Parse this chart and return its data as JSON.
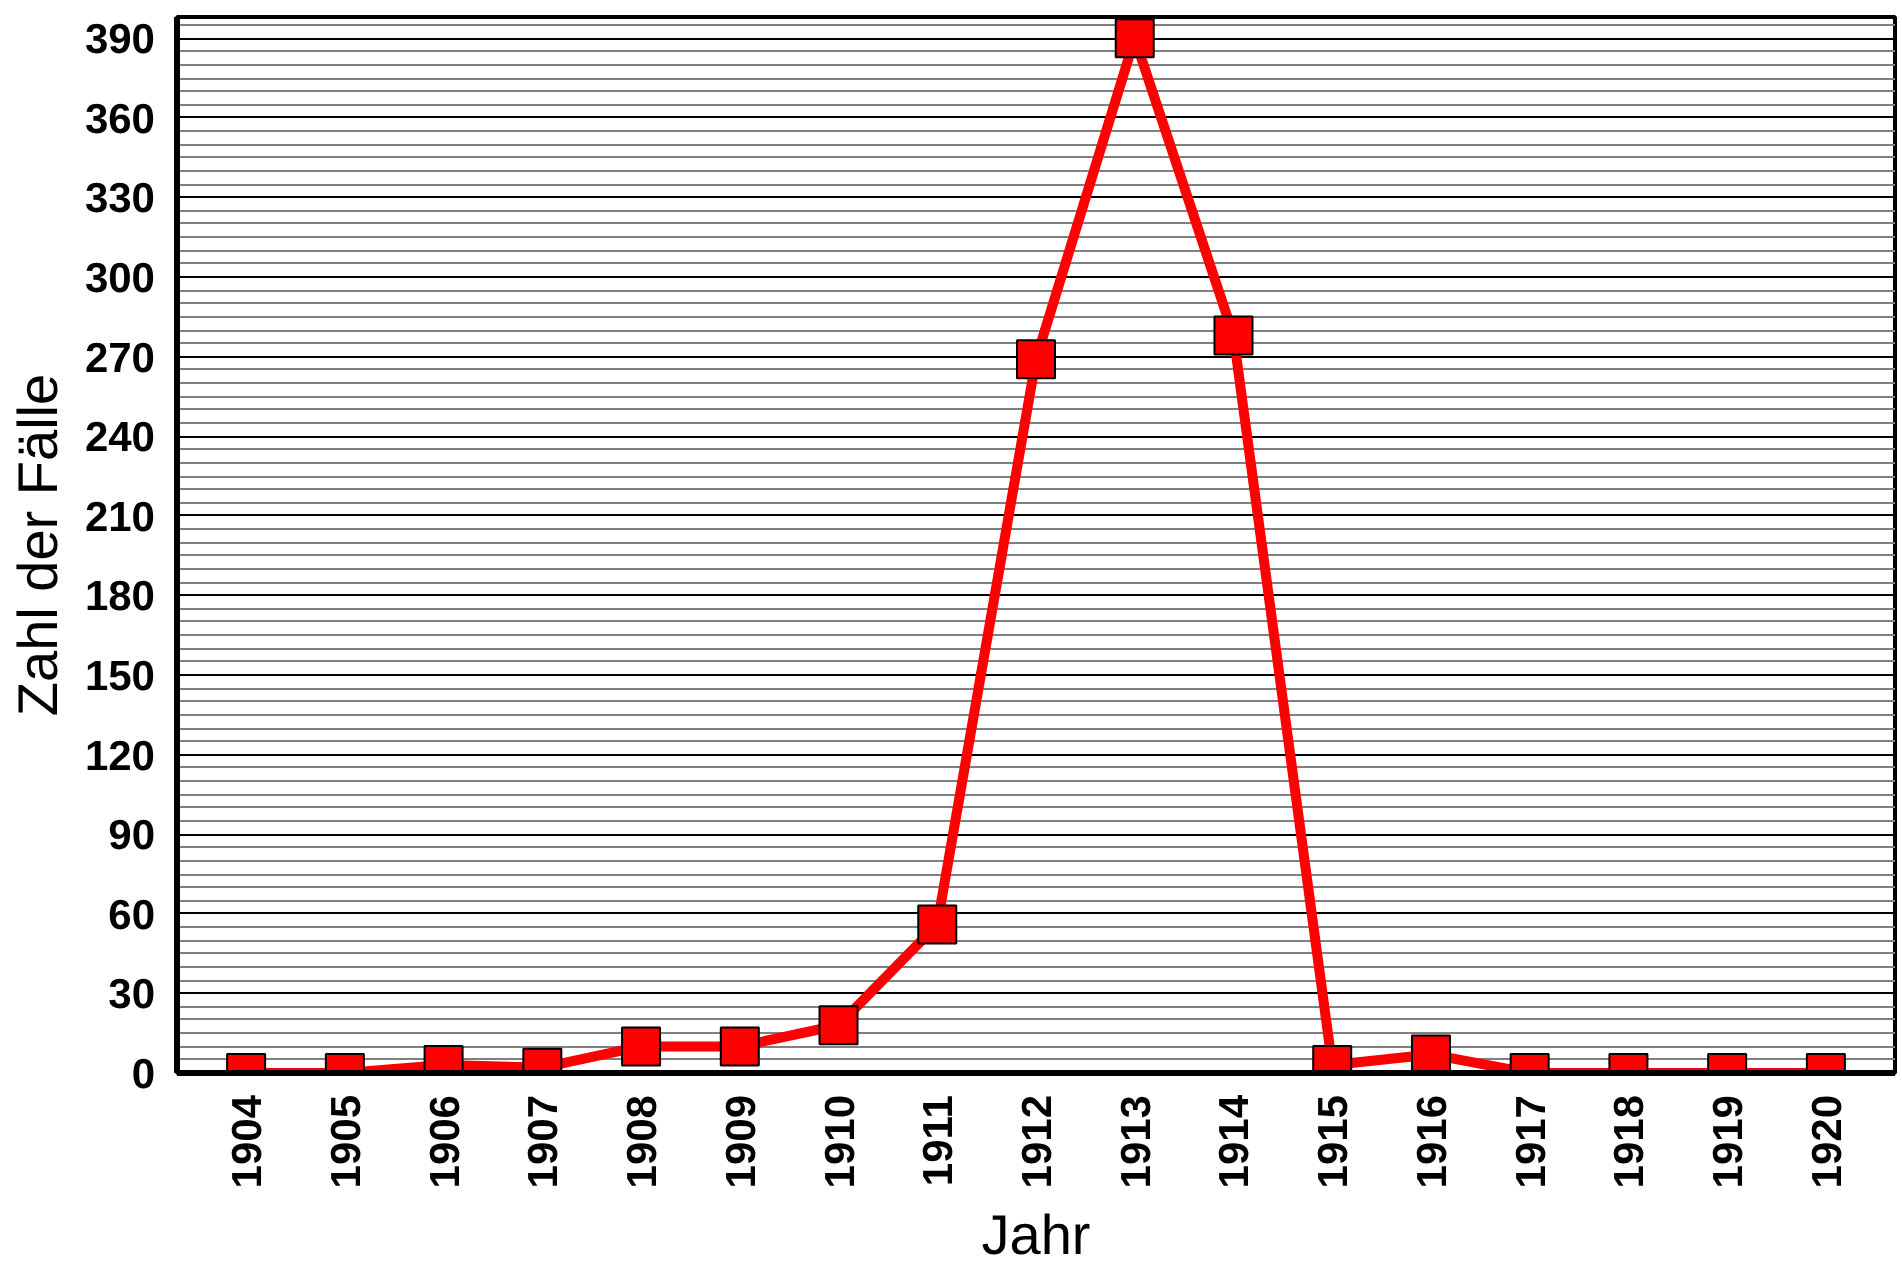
{
  "chart_data": {
    "type": "line",
    "xlabel": "Jahr",
    "ylabel": "Zahl der Fälle",
    "categories": [
      "1904",
      "1905",
      "1906",
      "1907",
      "1908",
      "1909",
      "1910",
      "1911",
      "1912",
      "1913",
      "1914",
      "1915",
      "1916",
      "1917",
      "1918",
      "1919",
      "1920"
    ],
    "series": [
      {
        "color": "#ff0000",
        "values": [
          0,
          0,
          3,
          2,
          10,
          10,
          18,
          56,
          269,
          390,
          278,
          3,
          7,
          0,
          0,
          0,
          0
        ]
      }
    ],
    "ylim": [
      0,
      398
    ],
    "yticks": [
      0,
      30,
      60,
      90,
      120,
      150,
      180,
      210,
      240,
      270,
      300,
      330,
      360,
      390
    ],
    "grid": "y",
    "marker": "square",
    "line_style": "solid"
  }
}
